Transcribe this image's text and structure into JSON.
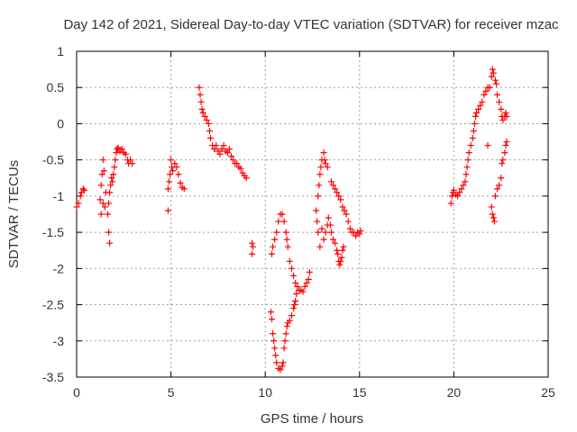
{
  "chart_data": {
    "type": "scatter",
    "title": "Day 142 of 2021, Sidereal Day-to-day VTEC variation (SDTVAR) for receiver mzac",
    "xlabel": "GPS time / hours",
    "ylabel": "SDTVAR / TECUs",
    "xlim": [
      0,
      25
    ],
    "ylim": [
      -3.5,
      1
    ],
    "x_ticks": [
      0,
      5,
      10,
      15,
      20,
      25
    ],
    "y_ticks": [
      1,
      0.5,
      0,
      -0.5,
      -1,
      -1.5,
      -2,
      -2.5,
      -3,
      -3.5
    ],
    "grid": true,
    "marker": "+",
    "series": [
      {
        "name": "SDTVAR",
        "color": "#ff0000",
        "points": [
          [
            0.0,
            -1.15
          ],
          [
            0.1,
            -1.1
          ],
          [
            0.2,
            -1.0
          ],
          [
            0.25,
            -0.95
          ],
          [
            0.35,
            -0.9
          ],
          [
            0.4,
            -0.92
          ],
          [
            1.25,
            -1.05
          ],
          [
            1.3,
            -0.85
          ],
          [
            1.35,
            -0.7
          ],
          [
            1.4,
            -0.5
          ],
          [
            1.45,
            -0.65
          ],
          [
            1.4,
            -1.1
          ],
          [
            1.3,
            -1.25
          ],
          [
            1.5,
            -1.15
          ],
          [
            1.55,
            -0.95
          ],
          [
            1.65,
            -1.25
          ],
          [
            1.7,
            -1.5
          ],
          [
            1.75,
            -1.65
          ],
          [
            1.7,
            -1.1
          ],
          [
            1.75,
            -0.95
          ],
          [
            1.8,
            -0.85
          ],
          [
            1.85,
            -0.75
          ],
          [
            1.9,
            -0.8
          ],
          [
            1.95,
            -0.7
          ],
          [
            2.0,
            -0.6
          ],
          [
            2.05,
            -0.5
          ],
          [
            2.1,
            -0.4
          ],
          [
            2.15,
            -0.35
          ],
          [
            2.2,
            -0.33
          ],
          [
            2.3,
            -0.38
          ],
          [
            2.4,
            -0.35
          ],
          [
            2.5,
            -0.4
          ],
          [
            2.6,
            -0.42
          ],
          [
            2.7,
            -0.5
          ],
          [
            2.75,
            -0.55
          ],
          [
            2.85,
            -0.5
          ],
          [
            2.95,
            -0.55
          ],
          [
            4.85,
            -1.2
          ],
          [
            4.85,
            -0.9
          ],
          [
            4.9,
            -0.8
          ],
          [
            4.95,
            -0.7
          ],
          [
            5.0,
            -0.5
          ],
          [
            5.05,
            -0.6
          ],
          [
            5.1,
            -0.65
          ],
          [
            5.2,
            -0.55
          ],
          [
            5.3,
            -0.6
          ],
          [
            5.4,
            -0.7
          ],
          [
            5.5,
            -0.82
          ],
          [
            5.6,
            -0.88
          ],
          [
            5.7,
            -0.9
          ],
          [
            6.5,
            0.5
          ],
          [
            6.55,
            0.4
          ],
          [
            6.6,
            0.3
          ],
          [
            6.65,
            0.2
          ],
          [
            6.7,
            0.15
          ],
          [
            6.8,
            0.1
          ],
          [
            6.9,
            0.05
          ],
          [
            7.0,
            0.0
          ],
          [
            7.05,
            -0.1
          ],
          [
            7.1,
            -0.2
          ],
          [
            7.2,
            -0.3
          ],
          [
            7.3,
            -0.35
          ],
          [
            7.4,
            -0.3
          ],
          [
            7.5,
            -0.38
          ],
          [
            7.6,
            -0.42
          ],
          [
            7.7,
            -0.35
          ],
          [
            7.8,
            -0.3
          ],
          [
            7.9,
            -0.38
          ],
          [
            8.0,
            -0.4
          ],
          [
            8.1,
            -0.35
          ],
          [
            8.2,
            -0.45
          ],
          [
            8.3,
            -0.5
          ],
          [
            8.4,
            -0.55
          ],
          [
            8.5,
            -0.55
          ],
          [
            8.6,
            -0.6
          ],
          [
            8.7,
            -0.62
          ],
          [
            8.8,
            -0.68
          ],
          [
            8.9,
            -0.72
          ],
          [
            9.0,
            -0.75
          ],
          [
            9.3,
            -1.65
          ],
          [
            9.3,
            -1.8
          ],
          [
            9.35,
            -1.7
          ],
          [
            10.3,
            -2.6
          ],
          [
            10.35,
            -2.7
          ],
          [
            10.4,
            -2.9
          ],
          [
            10.45,
            -3.0
          ],
          [
            10.5,
            -3.1
          ],
          [
            10.55,
            -3.2
          ],
          [
            10.6,
            -3.3
          ],
          [
            10.7,
            -3.38
          ],
          [
            10.8,
            -3.4
          ],
          [
            10.9,
            -3.35
          ],
          [
            10.95,
            -3.3
          ],
          [
            11.0,
            -3.1
          ],
          [
            11.05,
            -3.0
          ],
          [
            11.1,
            -2.9
          ],
          [
            11.15,
            -2.8
          ],
          [
            11.2,
            -2.75
          ],
          [
            11.3,
            -2.72
          ],
          [
            11.4,
            -2.65
          ],
          [
            11.5,
            -2.55
          ],
          [
            11.55,
            -2.5
          ],
          [
            11.6,
            -2.45
          ],
          [
            11.65,
            -2.35
          ],
          [
            10.35,
            -1.8
          ],
          [
            10.4,
            -1.7
          ],
          [
            10.5,
            -1.6
          ],
          [
            10.6,
            -1.5
          ],
          [
            10.7,
            -1.35
          ],
          [
            10.8,
            -1.25
          ],
          [
            10.9,
            -1.25
          ],
          [
            11.0,
            -1.35
          ],
          [
            11.1,
            -1.5
          ],
          [
            11.15,
            -1.6
          ],
          [
            11.2,
            -1.7
          ],
          [
            11.3,
            -1.9
          ],
          [
            11.4,
            -2.0
          ],
          [
            11.5,
            -2.1
          ],
          [
            11.6,
            -2.2
          ],
          [
            11.7,
            -2.25
          ],
          [
            11.8,
            -2.3
          ],
          [
            11.9,
            -2.3
          ],
          [
            12.0,
            -2.32
          ],
          [
            12.1,
            -2.25
          ],
          [
            12.2,
            -2.2
          ],
          [
            12.3,
            -2.15
          ],
          [
            12.35,
            -2.05
          ],
          [
            12.7,
            -1.2
          ],
          [
            12.75,
            -1.35
          ],
          [
            12.8,
            -1.0
          ],
          [
            12.85,
            -0.85
          ],
          [
            12.9,
            -0.7
          ],
          [
            12.95,
            -0.6
          ],
          [
            13.0,
            -0.5
          ],
          [
            13.1,
            -0.4
          ],
          [
            13.15,
            -0.5
          ],
          [
            13.2,
            -0.55
          ],
          [
            13.3,
            -0.6
          ],
          [
            12.8,
            -1.5
          ],
          [
            12.9,
            -1.7
          ],
          [
            13.0,
            -1.45
          ],
          [
            13.1,
            -1.6
          ],
          [
            13.2,
            -1.5
          ],
          [
            13.3,
            -1.4
          ],
          [
            13.35,
            -1.3
          ],
          [
            13.45,
            -1.4
          ],
          [
            13.5,
            -1.5
          ],
          [
            13.6,
            -1.6
          ],
          [
            13.7,
            -1.65
          ],
          [
            13.8,
            -1.75
          ],
          [
            13.85,
            -1.8
          ],
          [
            13.9,
            -1.9
          ],
          [
            13.95,
            -1.95
          ],
          [
            14.0,
            -1.9
          ],
          [
            14.05,
            -1.85
          ],
          [
            14.1,
            -1.75
          ],
          [
            14.15,
            -1.7
          ],
          [
            13.5,
            -0.8
          ],
          [
            13.6,
            -0.85
          ],
          [
            13.7,
            -0.9
          ],
          [
            13.8,
            -0.95
          ],
          [
            13.9,
            -1.0
          ],
          [
            14.0,
            -1.05
          ],
          [
            14.1,
            -1.15
          ],
          [
            14.2,
            -1.2
          ],
          [
            14.3,
            -1.25
          ],
          [
            14.4,
            -1.35
          ],
          [
            14.5,
            -1.45
          ],
          [
            14.6,
            -1.5
          ],
          [
            14.7,
            -1.5
          ],
          [
            14.8,
            -1.55
          ],
          [
            14.9,
            -1.5
          ],
          [
            15.0,
            -1.52
          ],
          [
            15.05,
            -1.48
          ],
          [
            19.85,
            -1.1
          ],
          [
            19.9,
            -1.0
          ],
          [
            19.95,
            -0.95
          ],
          [
            20.0,
            -0.92
          ],
          [
            20.1,
            -0.98
          ],
          [
            20.2,
            -1.0
          ],
          [
            20.3,
            -0.95
          ],
          [
            20.4,
            -0.9
          ],
          [
            20.5,
            -0.85
          ],
          [
            20.6,
            -0.8
          ],
          [
            20.65,
            -0.7
          ],
          [
            20.7,
            -0.6
          ],
          [
            20.75,
            -0.5
          ],
          [
            20.8,
            -0.4
          ],
          [
            20.9,
            -0.3
          ],
          [
            21.0,
            -0.2
          ],
          [
            21.05,
            -0.1
          ],
          [
            21.1,
            0.0
          ],
          [
            21.15,
            0.1
          ],
          [
            21.2,
            0.15
          ],
          [
            21.3,
            0.2
          ],
          [
            21.4,
            0.25
          ],
          [
            21.5,
            0.3
          ],
          [
            21.6,
            0.4
          ],
          [
            21.7,
            0.45
          ],
          [
            21.8,
            0.5
          ],
          [
            21.9,
            0.5
          ],
          [
            21.8,
            -0.3
          ],
          [
            22.0,
            0.65
          ],
          [
            22.05,
            0.75
          ],
          [
            22.1,
            0.7
          ],
          [
            22.2,
            0.6
          ],
          [
            22.25,
            0.55
          ],
          [
            22.3,
            0.4
          ],
          [
            22.4,
            0.3
          ],
          [
            22.5,
            0.2
          ],
          [
            22.55,
            0.1
          ],
          [
            22.6,
            0.05
          ],
          [
            22.7,
            0.1
          ],
          [
            22.75,
            0.15
          ],
          [
            22.8,
            0.1
          ],
          [
            22.0,
            -1.15
          ],
          [
            22.05,
            -1.25
          ],
          [
            22.1,
            -1.3
          ],
          [
            22.15,
            -1.35
          ],
          [
            22.2,
            -1.0
          ],
          [
            22.3,
            -0.9
          ],
          [
            22.4,
            -0.85
          ],
          [
            22.5,
            -0.75
          ],
          [
            22.55,
            -0.55
          ],
          [
            22.6,
            -0.5
          ],
          [
            22.7,
            -0.4
          ],
          [
            22.75,
            -0.3
          ],
          [
            22.8,
            -0.25
          ]
        ]
      }
    ]
  }
}
